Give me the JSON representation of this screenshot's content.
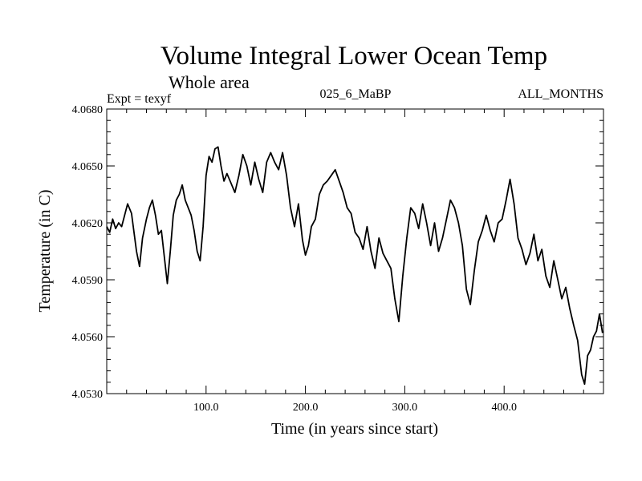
{
  "header": {
    "title": "Volume Integral Lower Ocean Temp",
    "subtitle": "Whole area",
    "experiment": "Expt = texyf",
    "run_id": "025_6_MaBP",
    "period": "ALL_MONTHS"
  },
  "chart_data": {
    "type": "line",
    "title": "Volume Integral Lower Ocean Temp",
    "subtitle": "Whole area",
    "xlabel": "Time (in years since start)",
    "ylabel": "Temperature (in C)",
    "xlim": [
      0,
      500
    ],
    "ylim": [
      4.053,
      4.068
    ],
    "x_ticks": [
      100,
      200,
      300,
      400
    ],
    "x_tick_labels": [
      "100.0",
      "200.0",
      "300.0",
      "400.0"
    ],
    "y_ticks": [
      4.053,
      4.056,
      4.059,
      4.062,
      4.065,
      4.068
    ],
    "y_tick_labels": [
      "4.0530",
      "4.0560",
      "4.0590",
      "4.0620",
      "4.0650",
      "4.0680"
    ],
    "grid": false,
    "line_color": "#000000",
    "series": [
      {
        "x": [
          0,
          3,
          6,
          9,
          12,
          15,
          18,
          21,
          25,
          30,
          33,
          36,
          40,
          43,
          46,
          49,
          52,
          55,
          58,
          61,
          64,
          67,
          70,
          73,
          76,
          79,
          82,
          85,
          88,
          91,
          94,
          97,
          100,
          103,
          106,
          109,
          112,
          115,
          118,
          121,
          125,
          129,
          133,
          137,
          141,
          145,
          149,
          153,
          157,
          161,
          165,
          169,
          173,
          177,
          181,
          185,
          189,
          193,
          197,
          200,
          203,
          206,
          210,
          214,
          218,
          222,
          226,
          230,
          234,
          238,
          242,
          246,
          250,
          254,
          258,
          262,
          266,
          270,
          274,
          278,
          282,
          286,
          290,
          294,
          298,
          302,
          306,
          310,
          314,
          318,
          322,
          326,
          330,
          334,
          338,
          342,
          346,
          350,
          354,
          358,
          362,
          366,
          370,
          374,
          378,
          382,
          386,
          390,
          394,
          398,
          402,
          406,
          410,
          414,
          418,
          422,
          426,
          430,
          434,
          438,
          442,
          446,
          450,
          454,
          458,
          462,
          466,
          470,
          474,
          478,
          481,
          484,
          487,
          490,
          493,
          496,
          499
        ],
        "y": [
          4.0618,
          4.0615,
          4.0622,
          4.0617,
          4.062,
          4.0618,
          4.0624,
          4.063,
          4.0625,
          4.0605,
          4.0597,
          4.0612,
          4.0622,
          4.0628,
          4.0632,
          4.0624,
          4.0614,
          4.0616,
          4.0602,
          4.0588,
          4.0605,
          4.0624,
          4.0632,
          4.0635,
          4.064,
          4.0632,
          4.0628,
          4.0624,
          4.0616,
          4.0605,
          4.06,
          4.0618,
          4.0645,
          4.0655,
          4.0652,
          4.0659,
          4.066,
          4.065,
          4.0642,
          4.0646,
          4.0641,
          4.0636,
          4.0645,
          4.0656,
          4.065,
          4.064,
          4.0652,
          4.0643,
          4.0636,
          4.0652,
          4.0657,
          4.0652,
          4.0648,
          4.0657,
          4.0645,
          4.0628,
          4.0618,
          4.063,
          4.0611,
          4.0603,
          4.0608,
          4.0618,
          4.0622,
          4.0635,
          4.064,
          4.0642,
          4.0645,
          4.0648,
          4.0642,
          4.0636,
          4.0628,
          4.0625,
          4.0615,
          4.0612,
          4.0606,
          4.0618,
          4.0605,
          4.0596,
          4.0612,
          4.0604,
          4.06,
          4.0596,
          4.058,
          4.0568,
          4.0592,
          4.0612,
          4.0628,
          4.0625,
          4.0617,
          4.063,
          4.062,
          4.0608,
          4.062,
          4.0605,
          4.0612,
          4.0622,
          4.0632,
          4.0628,
          4.062,
          4.0608,
          4.0585,
          4.0577,
          4.0595,
          4.061,
          4.0616,
          4.0624,
          4.0616,
          4.061,
          4.062,
          4.0622,
          4.0632,
          4.0643,
          4.063,
          4.0612,
          4.0606,
          4.0598,
          4.0604,
          4.0614,
          4.06,
          4.0606,
          4.0592,
          4.0586,
          4.06,
          4.059,
          4.058,
          4.0586,
          4.0575,
          4.0566,
          4.0558,
          4.054,
          4.0535,
          4.055,
          4.0553,
          4.056,
          4.0563,
          4.0572,
          4.0562
        ]
      }
    ]
  }
}
